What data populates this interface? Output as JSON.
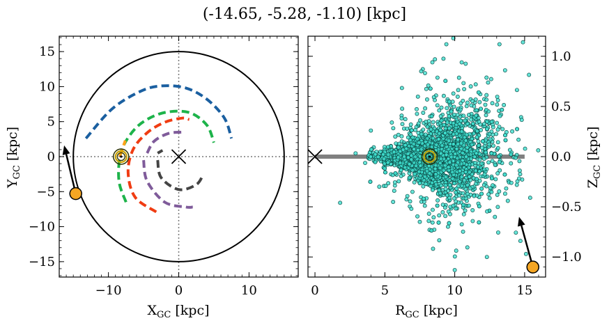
{
  "title": "(-14.65, -5.28, -1.10) [kpc]",
  "colors": {
    "arm_blue": "#1a5fa0",
    "arm_green": "#1db34a",
    "arm_red": "#f03c12",
    "arm_purple": "#7f5b9a",
    "arm_black": "#444444",
    "arm_orange": "#ffa21a",
    "star_fill": "#40e0d0",
    "star_edge": "#0d4f4a",
    "object_fill": "#f5a623",
    "sun_ring": "#2a3000",
    "disk_line": "#808080"
  },
  "chart_data": [
    {
      "type": "scatter",
      "panel": "left",
      "xlabel_main": "X",
      "xlabel_sub": "GC",
      "xlabel_unit": " [kpc]",
      "ylabel_main": "Y",
      "ylabel_sub": "GC",
      "ylabel_unit": " [kpc]",
      "xlim": [
        -17,
        17
      ],
      "ylim": [
        -17.2,
        17.2
      ],
      "xticks": [
        -10,
        0,
        10
      ],
      "xtick_labels": [
        "−10",
        "0",
        "10"
      ],
      "yticks": [
        -15,
        -10,
        -5,
        0,
        5,
        10,
        15
      ],
      "ytick_labels": [
        "−15",
        "−10",
        "−5",
        "0",
        "5",
        "10",
        "15"
      ],
      "grid": false,
      "galaxy_radius": 15,
      "galactic_center": [
        0,
        0
      ],
      "sun_position": [
        -8.2,
        0
      ],
      "object_position": [
        -14.65,
        -5.28
      ],
      "velocity_arrow_tip": [
        -16.3,
        1.6
      ],
      "spiral_arms": [
        {
          "color_key": "arm_blue",
          "points": [
            [
              -13.2,
              2.6
            ],
            [
              -9.5,
              6.8
            ],
            [
              -5.5,
              9.3
            ],
            [
              -2.5,
              10.1
            ],
            [
              1,
              9.8
            ],
            [
              4,
              8.2
            ],
            [
              6.5,
              5.5
            ],
            [
              7.5,
              2.6
            ]
          ]
        },
        {
          "color_key": "arm_green",
          "points": [
            [
              -7.5,
              -6.5
            ],
            [
              -8.5,
              -3.5
            ],
            [
              -8.3,
              0.3
            ],
            [
              -7,
              3
            ],
            [
              -5,
              5
            ],
            [
              -2,
              6.3
            ],
            [
              1.5,
              6.3
            ],
            [
              4,
              4.5
            ],
            [
              5,
              2
            ]
          ]
        },
        {
          "color_key": "arm_red",
          "points": [
            [
              -3.2,
              -7.9
            ],
            [
              -6.2,
              -5.8
            ],
            [
              -7.2,
              -2.3
            ],
            [
              -6.5,
              1
            ],
            [
              -4.5,
              3.4
            ],
            [
              -2,
              4.9
            ],
            [
              0.5,
              5.5
            ],
            [
              1.5,
              5.3
            ]
          ]
        },
        {
          "color_key": "arm_purple",
          "points": [
            [
              -5,
              -0.5
            ],
            [
              -4.5,
              -3.5
            ],
            [
              -2,
              -6.5
            ],
            [
              1,
              -7.2
            ],
            [
              2,
              -7.2
            ]
          ]
        },
        {
          "color_key": "arm_purple",
          "points": [
            [
              -4.5,
              0.5
            ],
            [
              -3.5,
              2.2
            ],
            [
              -1.5,
              3.3
            ],
            [
              0.5,
              3.5
            ]
          ]
        },
        {
          "color_key": "arm_black",
          "points": [
            [
              -3,
              -0.5
            ],
            [
              -2.5,
              -3
            ],
            [
              0,
              -4.7
            ],
            [
              2.5,
              -4
            ],
            [
              3.5,
              -2.5
            ]
          ]
        },
        {
          "color_key": "arm_black",
          "points": [
            [
              -3,
              0.5
            ],
            [
              -2.3,
              0.9
            ]
          ]
        },
        {
          "color_key": "arm_orange",
          "points": [
            [
              -8.4,
              0
            ],
            [
              -7.6,
              2.3
            ]
          ]
        }
      ]
    },
    {
      "type": "scatter",
      "panel": "right",
      "xlabel_main": "R",
      "xlabel_sub": "GC",
      "xlabel_unit": " [kpc]",
      "ylabel_main": "Z",
      "ylabel_sub": "GC",
      "ylabel_unit": " [kpc]",
      "xlim": [
        -0.5,
        16.5
      ],
      "ylim": [
        -1.2,
        1.2
      ],
      "xticks": [
        0,
        5,
        10,
        15
      ],
      "xtick_labels": [
        "0",
        "5",
        "10",
        "15"
      ],
      "yticks": [
        -1.0,
        -0.5,
        0.0,
        0.5,
        1.0
      ],
      "ytick_labels": [
        "−1.0",
        "−0.5",
        "0.0",
        "0.5",
        "1.0"
      ],
      "grid": false,
      "disk_line": {
        "x_range": [
          0,
          15
        ],
        "z": 0
      },
      "galactic_center": [
        0,
        0
      ],
      "sun_position": [
        8.2,
        0
      ],
      "object_position": [
        15.59,
        -1.1
      ],
      "velocity_arrow_tip": [
        14.6,
        -0.6
      ],
      "stars": {
        "count": 2600,
        "marker": "circle",
        "description_from_plot": "Dense cloud of stars between R≈4 and R≈12 kpc concentrated near Z=0, with scattered stars up to |Z|≈1.2 kpc, skewed toward larger R.",
        "sample_points": [
          [
            1.8,
            -0.46
          ],
          [
            4,
            0.26
          ],
          [
            4.6,
            -0.3
          ],
          [
            5.5,
            0.34
          ],
          [
            7.6,
            0.85
          ],
          [
            8.4,
            0.94
          ],
          [
            9.4,
            1.12
          ],
          [
            9.9,
            1.18
          ],
          [
            13.2,
            1.12
          ],
          [
            13.6,
            0.86
          ],
          [
            10,
            -1.13
          ],
          [
            11.8,
            -1.22
          ],
          [
            12.3,
            -1.0
          ],
          [
            14.7,
            -0.84
          ],
          [
            15.1,
            -0.97
          ],
          [
            7.5,
            -0.65
          ],
          [
            11.5,
            0.72
          ]
        ]
      }
    }
  ]
}
